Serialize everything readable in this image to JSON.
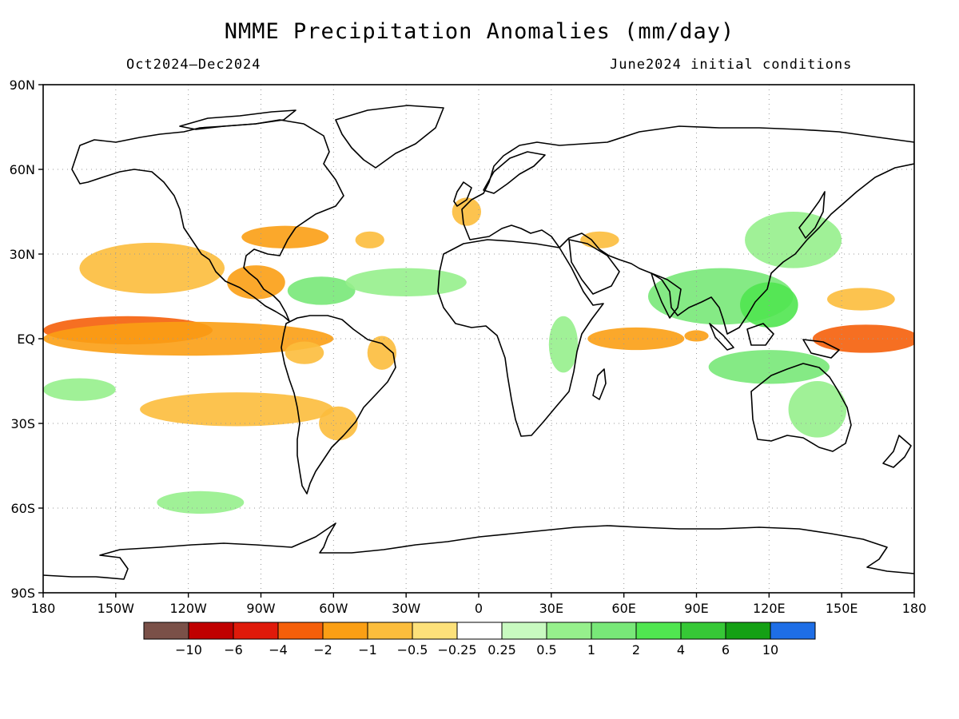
{
  "title": "NMME Precipitation Anomalies (mm/day)",
  "subtitle_left": "Oct2024–Dec2024",
  "subtitle_right": "June2024 initial conditions",
  "lat_labels": [
    "90N",
    "60N",
    "30N",
    "EQ",
    "30S",
    "60S",
    "90S"
  ],
  "lon_labels": [
    "180",
    "150W",
    "120W",
    "90W",
    "60W",
    "30W",
    "0",
    "30E",
    "60E",
    "90E",
    "120E",
    "150E",
    "180"
  ],
  "colorbar": {
    "colors": [
      "#7a5048",
      "#c00000",
      "#e01a0a",
      "#f55f0a",
      "#fb9f14",
      "#fcbd3c",
      "#fde17a",
      "#ffffff",
      "#c8fac0",
      "#96f08c",
      "#78e878",
      "#50e650",
      "#36c836",
      "#14a014",
      "#1e6ee6"
    ],
    "labels": [
      "−10",
      "−6",
      "−4",
      "−2",
      "−1",
      "−0.5",
      "−0.25",
      "0.25",
      "0.5",
      "1",
      "2",
      "4",
      "6",
      "10"
    ]
  },
  "anomaly_regions": [
    {
      "lon": -145,
      "lat": 3,
      "rx": 35,
      "ry": 5,
      "level": "-2"
    },
    {
      "lon": -120,
      "lat": 0,
      "rx": 60,
      "ry": 6,
      "level": "-1"
    },
    {
      "lon": -100,
      "lat": -25,
      "rx": 40,
      "ry": 6,
      "level": "-0.5"
    },
    {
      "lon": -135,
      "lat": 25,
      "rx": 30,
      "ry": 9,
      "level": "-0.5"
    },
    {
      "lon": -92,
      "lat": 20,
      "rx": 12,
      "ry": 6,
      "level": "-1"
    },
    {
      "lon": -80,
      "lat": 36,
      "rx": 18,
      "ry": 4,
      "level": "-1"
    },
    {
      "lon": -72,
      "lat": -5,
      "rx": 8,
      "ry": 4,
      "level": "-0.5"
    },
    {
      "lon": -58,
      "lat": -30,
      "rx": 8,
      "ry": 6,
      "level": "-0.5"
    },
    {
      "lon": -40,
      "lat": -5,
      "rx": 6,
      "ry": 6,
      "level": "-0.5"
    },
    {
      "lon": -45,
      "lat": 35,
      "rx": 6,
      "ry": 3,
      "level": "-0.5"
    },
    {
      "lon": -5,
      "lat": 45,
      "rx": 6,
      "ry": 5,
      "level": "-0.5"
    },
    {
      "lon": 50,
      "lat": 35,
      "rx": 8,
      "ry": 3,
      "level": "-0.5"
    },
    {
      "lon": 65,
      "lat": 0,
      "rx": 20,
      "ry": 4,
      "level": "-1"
    },
    {
      "lon": 90,
      "lat": 1,
      "rx": 5,
      "ry": 2,
      "level": "-1"
    },
    {
      "lon": 160,
      "lat": 0,
      "rx": 22,
      "ry": 5,
      "level": "-2"
    },
    {
      "lon": 158,
      "lat": 14,
      "rx": 14,
      "ry": 4,
      "level": "-0.5"
    },
    {
      "lon": -65,
      "lat": 17,
      "rx": 14,
      "ry": 5,
      "level": "1"
    },
    {
      "lon": -30,
      "lat": 20,
      "rx": 25,
      "ry": 5,
      "level": "0.5"
    },
    {
      "lon": 100,
      "lat": 15,
      "rx": 30,
      "ry": 10,
      "level": "1"
    },
    {
      "lon": 120,
      "lat": 12,
      "rx": 12,
      "ry": 8,
      "level": "2"
    },
    {
      "lon": 130,
      "lat": 35,
      "rx": 20,
      "ry": 10,
      "level": "0.5"
    },
    {
      "lon": 120,
      "lat": -10,
      "rx": 25,
      "ry": 6,
      "level": "1"
    },
    {
      "lon": 140,
      "lat": -25,
      "rx": 12,
      "ry": 10,
      "level": "0.5"
    },
    {
      "lon": -165,
      "lat": -18,
      "rx": 15,
      "ry": 4,
      "level": "0.5"
    },
    {
      "lon": 35,
      "lat": -2,
      "rx": 6,
      "ry": 10,
      "level": "0.5"
    },
    {
      "lon": -115,
      "lat": -58,
      "rx": 18,
      "ry": 4,
      "level": "0.5"
    }
  ]
}
